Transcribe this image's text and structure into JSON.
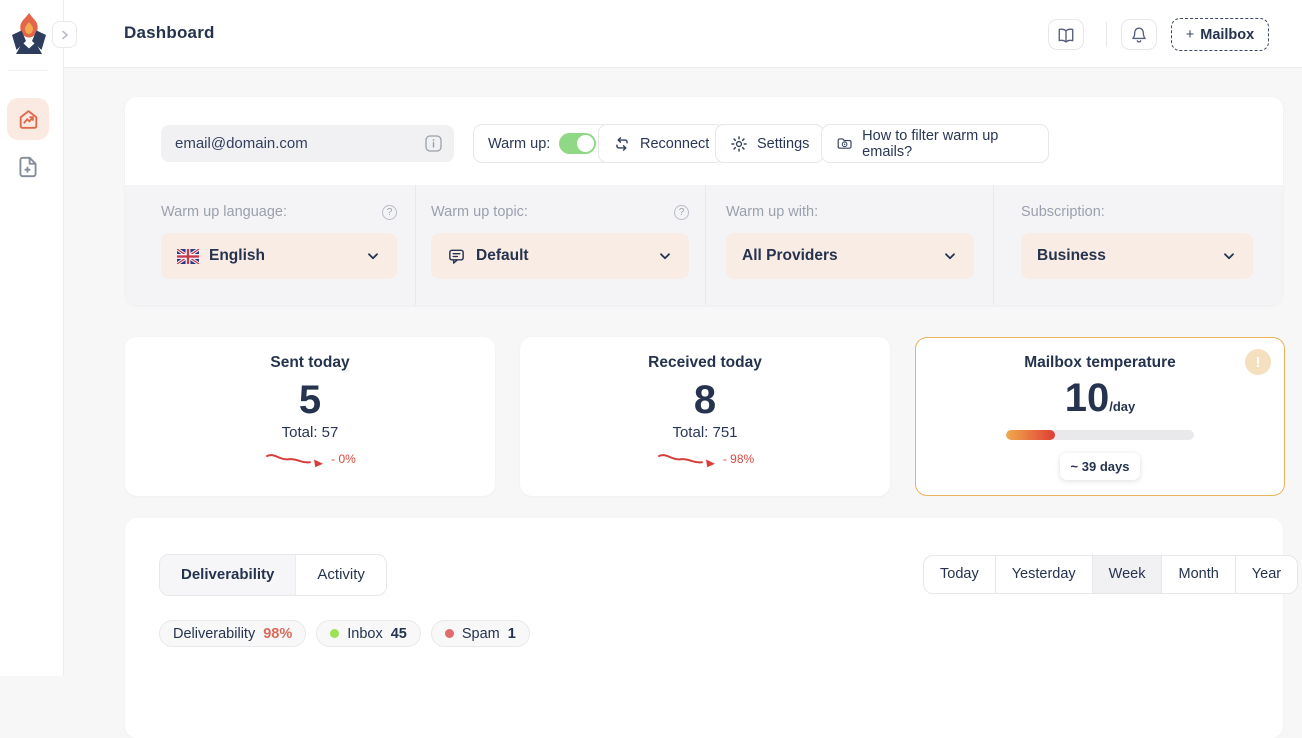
{
  "colors": {
    "accent_orange": "#e0694b",
    "navy_text": "#26334f",
    "peach_dropdown": "#f9ece4",
    "toggle_green": "#8fd986",
    "spark_red": "#d63f39",
    "temp_card_border": "#eeb25f",
    "inbox_dot": "#9fe154",
    "spam_dot": "#e06d6b",
    "deliverability_value": "#d96a5a"
  },
  "sidebar": {
    "logo": "flame-mail-logo",
    "items": [
      {
        "name": "dashboard",
        "icon": "home-chart-icon",
        "active": true
      },
      {
        "name": "add-report",
        "icon": "file-plus-icon",
        "active": false
      }
    ]
  },
  "header": {
    "title": "Dashboard",
    "docs_icon": "book-icon",
    "notifications_icon": "bell-icon",
    "mailbox_button": {
      "plus": "+",
      "label": "Mailbox"
    }
  },
  "toolbar": {
    "email": "email@domain.com",
    "warmup_label": "Warm up:",
    "warmup_on": true,
    "reconnect_label": "Reconnect",
    "settings_label": "Settings",
    "filter_help_label": "How to filter warm up emails?"
  },
  "settings_row": [
    {
      "label": "Warm up language:",
      "value": "English",
      "icon": "uk-flag-icon",
      "help": true
    },
    {
      "label": "Warm up topic:",
      "value": "Default",
      "icon": "chat-bubble-icon",
      "help": true
    },
    {
      "label": "Warm up with:",
      "value": "All Providers",
      "icon": "",
      "help": false
    },
    {
      "label": "Subscription:",
      "value": "Business",
      "icon": "",
      "help": false
    }
  ],
  "stats": [
    {
      "title": "Sent today",
      "value": "5",
      "total": "Total: 57",
      "change": "- 0%"
    },
    {
      "title": "Received today",
      "value": "8",
      "total": "Total: 751",
      "change": "- 98%"
    }
  ],
  "temperature": {
    "title": "Mailbox temperature",
    "value": "10",
    "unit": "/day",
    "progress_percent": 26,
    "days_label": "~ 39 days"
  },
  "chart_section": {
    "tabs": [
      {
        "label": "Deliverability",
        "active": true
      },
      {
        "label": "Activity",
        "active": false
      }
    ],
    "ranges": [
      {
        "label": "Today",
        "active": false
      },
      {
        "label": "Yesterday",
        "active": false
      },
      {
        "label": "Week",
        "active": true
      },
      {
        "label": "Month",
        "active": false
      },
      {
        "label": "Year",
        "active": false
      }
    ],
    "legend": [
      {
        "label": "Deliverability",
        "value": "98%"
      },
      {
        "label": "Inbox",
        "value": "45"
      },
      {
        "label": "Spam",
        "value": "1"
      }
    ]
  }
}
